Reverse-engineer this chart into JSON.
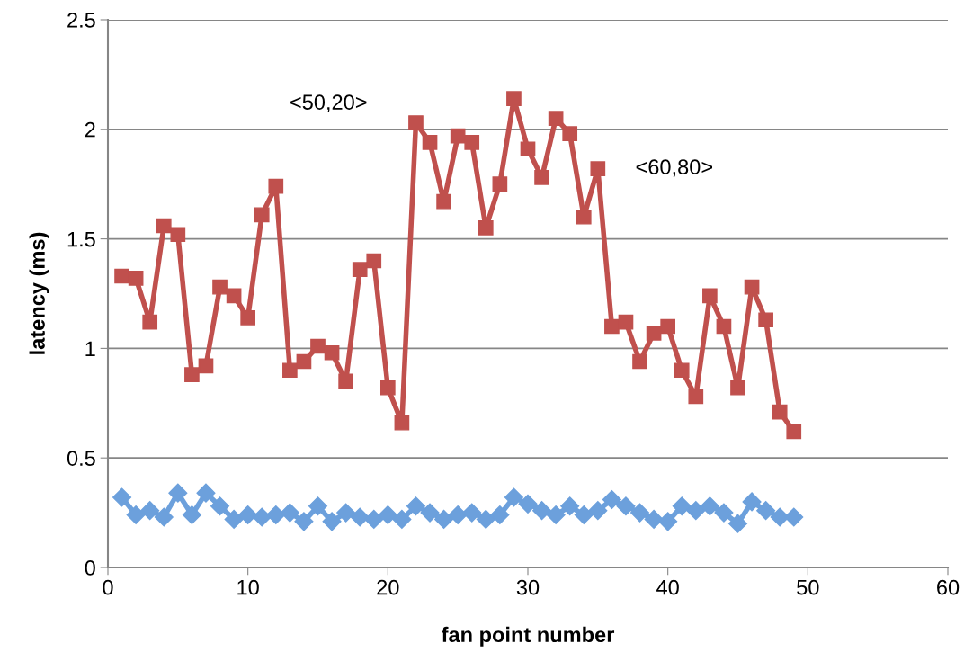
{
  "chart_data": {
    "type": "line",
    "xlabel": "fan point number",
    "ylabel": "latency (ms)",
    "xlim": [
      0,
      60
    ],
    "xticks": [
      0,
      10,
      20,
      30,
      40,
      50,
      60
    ],
    "ylim": [
      0,
      2.5
    ],
    "yticks": [
      0,
      0.5,
      1,
      1.5,
      2,
      2.5
    ],
    "grid": "y",
    "x": [
      1,
      2,
      3,
      4,
      5,
      6,
      7,
      8,
      9,
      10,
      11,
      12,
      13,
      14,
      15,
      16,
      17,
      18,
      19,
      20,
      21,
      22,
      23,
      24,
      25,
      26,
      27,
      28,
      29,
      30,
      31,
      32,
      33,
      34,
      35,
      36,
      37,
      38,
      39,
      40,
      41,
      42,
      43,
      44,
      45,
      46,
      47,
      48,
      49
    ],
    "series": [
      {
        "color": "#c0504d",
        "marker": "square",
        "values": [
          1.33,
          1.32,
          1.12,
          1.56,
          1.52,
          0.88,
          0.92,
          1.28,
          1.24,
          1.14,
          1.61,
          1.74,
          0.9,
          0.94,
          1.01,
          0.98,
          0.85,
          1.36,
          1.4,
          0.82,
          0.66,
          2.03,
          1.94,
          1.67,
          1.97,
          1.94,
          1.55,
          1.75,
          2.14,
          1.91,
          1.78,
          2.05,
          1.98,
          1.6,
          1.82,
          1.1,
          1.12,
          0.94,
          1.07,
          1.1,
          0.9,
          0.78,
          1.24,
          1.1,
          0.82,
          1.28,
          1.13,
          0.71,
          0.62
        ]
      },
      {
        "color": "#6ca0dc",
        "marker": "diamond",
        "values": [
          0.32,
          0.24,
          0.26,
          0.23,
          0.34,
          0.24,
          0.34,
          0.28,
          0.22,
          0.24,
          0.23,
          0.24,
          0.25,
          0.21,
          0.28,
          0.21,
          0.25,
          0.23,
          0.22,
          0.24,
          0.22,
          0.28,
          0.25,
          0.22,
          0.24,
          0.25,
          0.22,
          0.24,
          0.32,
          0.29,
          0.26,
          0.24,
          0.28,
          0.24,
          0.26,
          0.31,
          0.28,
          0.25,
          0.22,
          0.21,
          0.28,
          0.26,
          0.28,
          0.25,
          0.2,
          0.3,
          0.26,
          0.23,
          0.23
        ]
      }
    ],
    "annotations": [
      {
        "text": "<50,20>",
        "x": 22,
        "y": 2.03
      },
      {
        "text": "<60,80>",
        "x": 35,
        "y": 1.82
      }
    ]
  }
}
